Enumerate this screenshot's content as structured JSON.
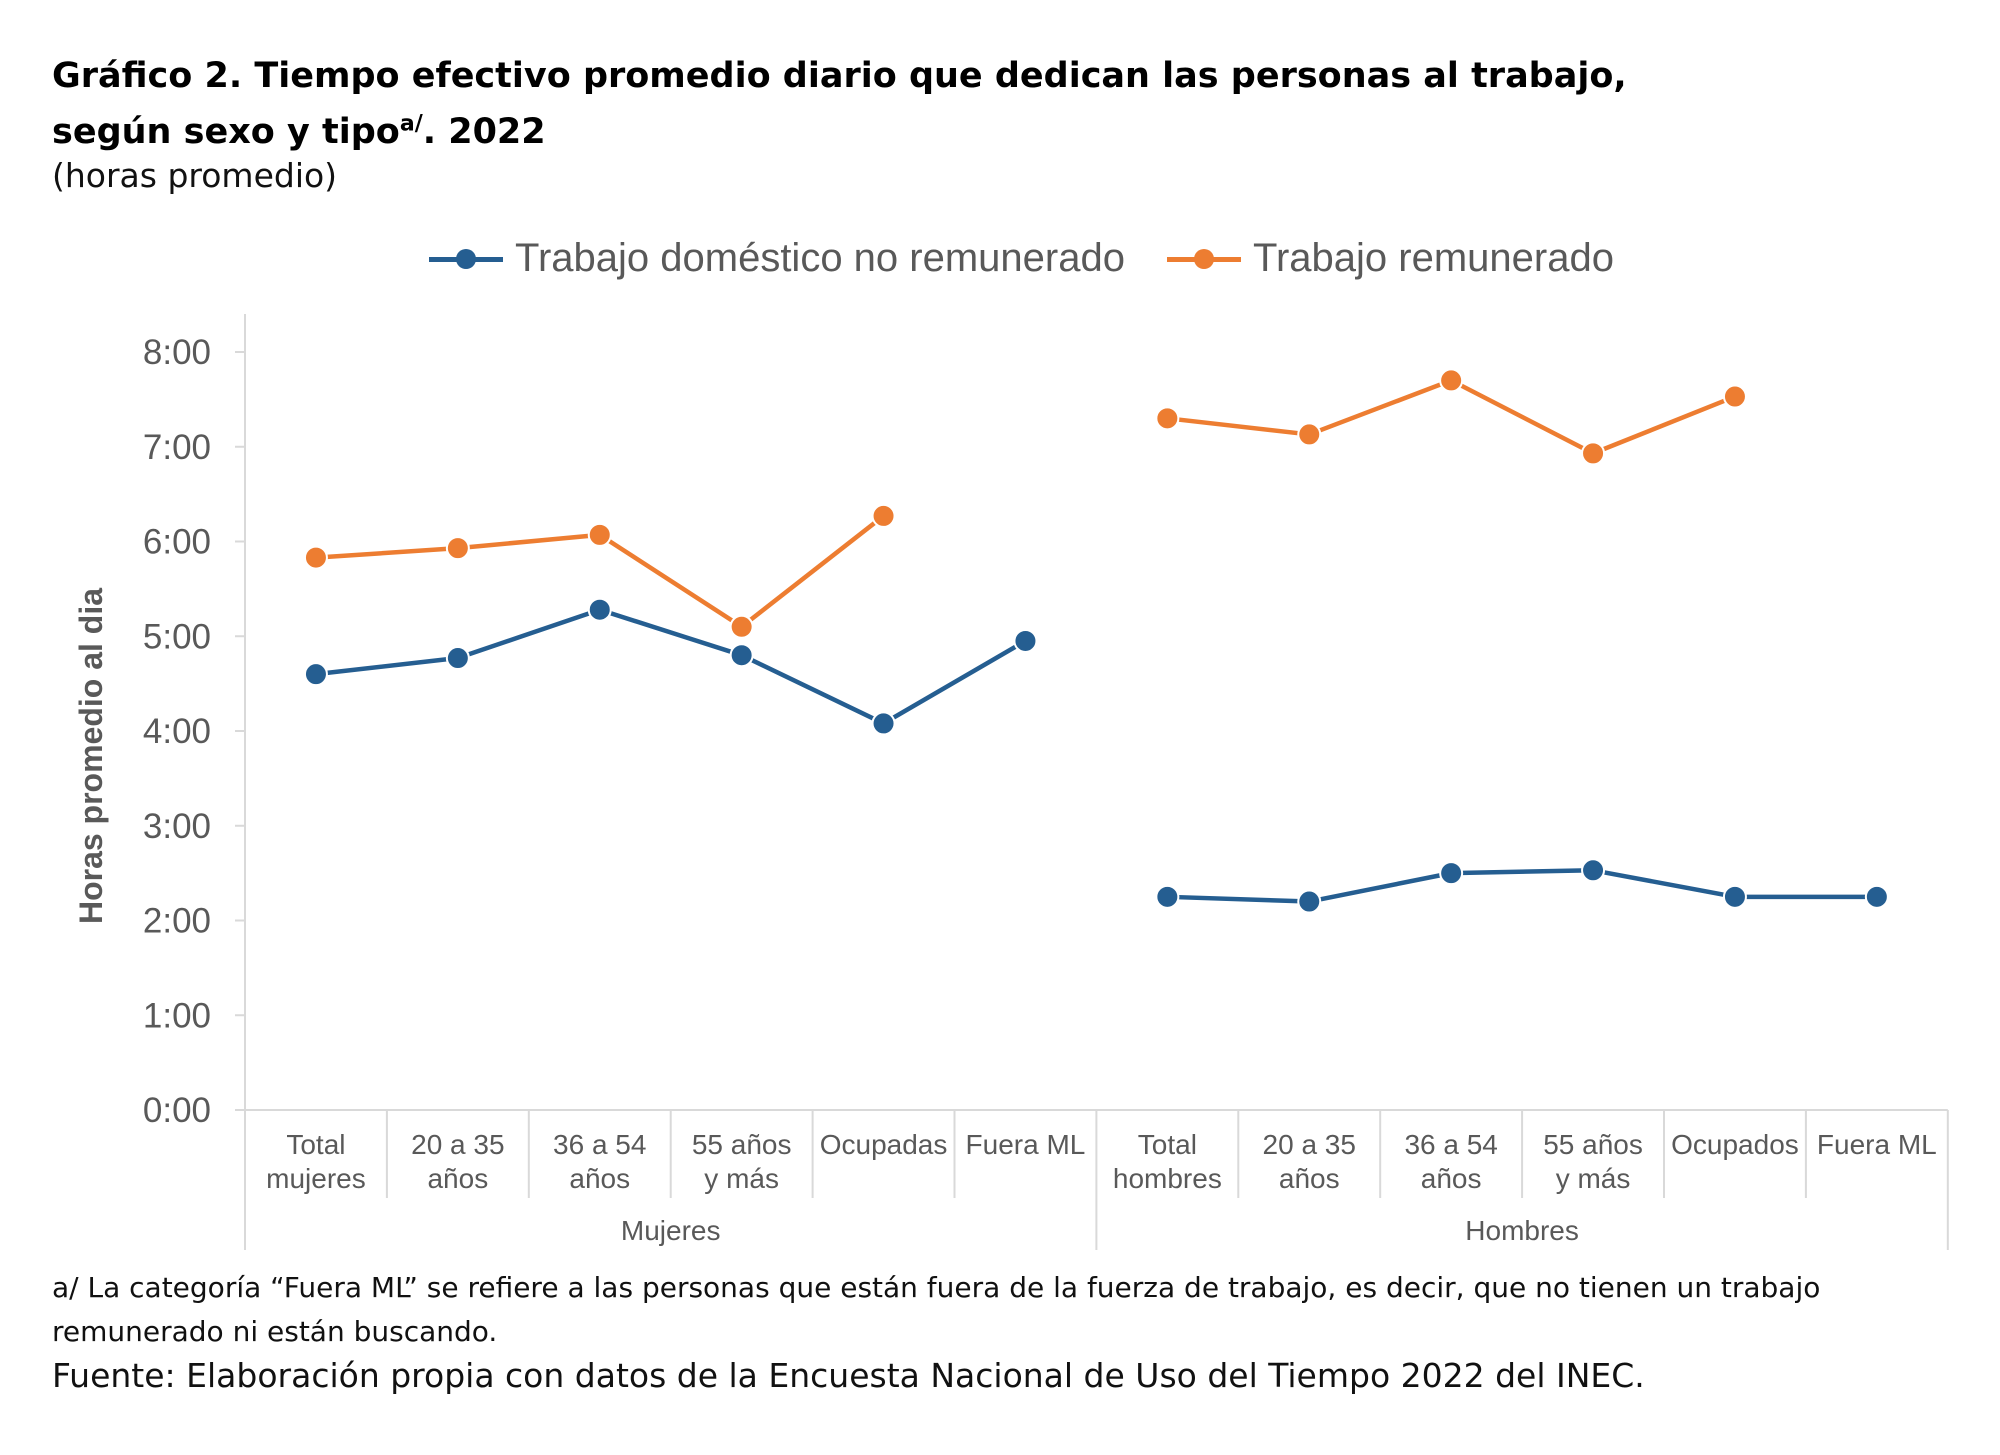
{
  "title": {
    "text": "Gráfico 2. Tiempo efectivo promedio diario que dedican las personas al trabajo, según sexo y tipo",
    "superscript": "a/",
    "year": ". 2022"
  },
  "subtitle": "(horas promedio)",
  "footnote": "a/ La categoría “Fuera ML” se refiere a las personas que están fuera de la fuerza de trabajo, es decir, que no tienen un trabajo remunerado ni están buscando.",
  "source": "Fuente: Elaboración propia con datos de la Encuesta Nacional de Uso del Tiempo 2022 del INEC.",
  "chart_data": {
    "type": "line",
    "title": "Gráfico 2. Tiempo efectivo promedio diario que dedican las personas al trabajo, según sexo y tipo. 2022",
    "xlabel": "",
    "ylabel": "Horas promedio al dia",
    "ylim": [
      0,
      8
    ],
    "yticks": [
      "0:00",
      "1:00",
      "2:00",
      "3:00",
      "4:00",
      "5:00",
      "6:00",
      "7:00",
      "8:00"
    ],
    "grid": false,
    "legend_position": "top",
    "categories": [
      [
        "Total",
        "mujeres"
      ],
      [
        "20 a 35",
        "años"
      ],
      [
        "36 a 54",
        "años"
      ],
      [
        "55 años",
        "y más"
      ],
      [
        "Ocupadas"
      ],
      [
        "Fuera ML"
      ],
      [
        "Total",
        "hombres"
      ],
      [
        "20 a 35",
        "años"
      ],
      [
        "36 a 54",
        "años"
      ],
      [
        "55 años",
        "y más"
      ],
      [
        "Ocupados"
      ],
      [
        "Fuera ML"
      ]
    ],
    "groups": [
      {
        "name": "Mujeres",
        "start": 0,
        "end": 5
      },
      {
        "name": "Hombres",
        "start": 6,
        "end": 11
      }
    ],
    "series": [
      {
        "name": "Trabajo doméstico no remunerado",
        "color": "#255E91",
        "values": [
          4.6,
          4.77,
          5.28,
          4.8,
          4.08,
          4.95,
          2.25,
          2.2,
          2.5,
          2.53,
          2.25,
          2.25
        ]
      },
      {
        "name": "Trabajo remunerado",
        "color": "#ED7D31",
        "values": [
          5.83,
          5.93,
          6.07,
          5.1,
          6.27,
          null,
          7.3,
          7.13,
          7.7,
          6.93,
          7.53,
          null
        ]
      }
    ]
  }
}
